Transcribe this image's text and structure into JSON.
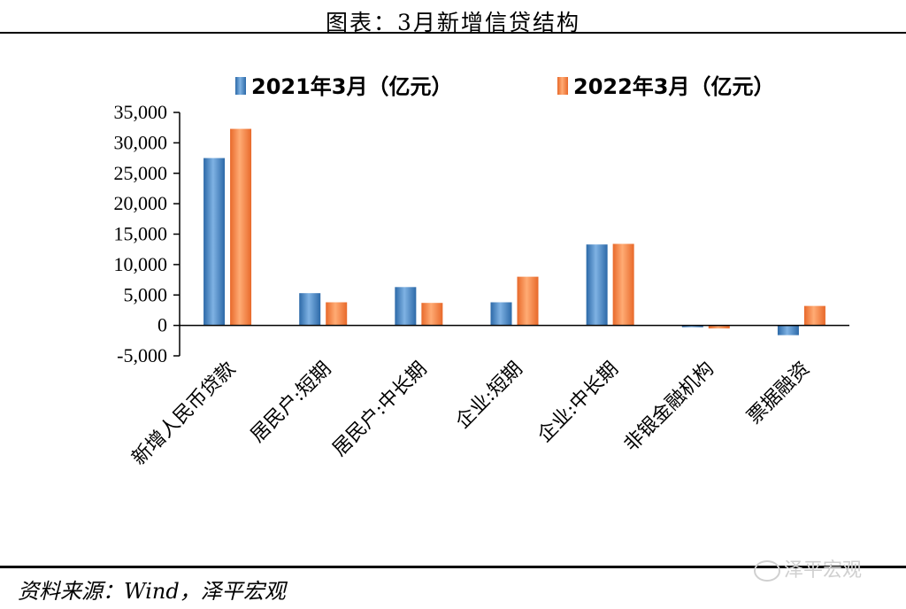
{
  "header": {
    "title": "图表：3月新增信贷结构"
  },
  "footer": {
    "source": "资料来源：Wind，泽平宏观",
    "watermark": "泽平宏观"
  },
  "colors": {
    "series_2021": "#3a7fc4",
    "series_2022": "#f28035",
    "axis": "#000000"
  },
  "chart_data": {
    "type": "bar",
    "categories": [
      "新增人民币贷款",
      "居民户:短期",
      "居民户:中长期",
      "企业:短期",
      "企业:中长期",
      "非银金融机构",
      "票据融资"
    ],
    "series": [
      {
        "name": "2021年3月（亿元）",
        "values": [
          27500,
          5300,
          6300,
          3800,
          13300,
          -300,
          -1600
        ]
      },
      {
        "name": "2022年3月（亿元）",
        "values": [
          32300,
          3800,
          3700,
          8000,
          13400,
          -500,
          3200
        ]
      }
    ],
    "yticks": [
      "35,000",
      "30,000",
      "25,000",
      "20,000",
      "15,000",
      "10,000",
      "5,000",
      "0",
      "-5,000"
    ],
    "ylim": [
      -5000,
      35000
    ],
    "grid": false,
    "legend_position": "top"
  }
}
